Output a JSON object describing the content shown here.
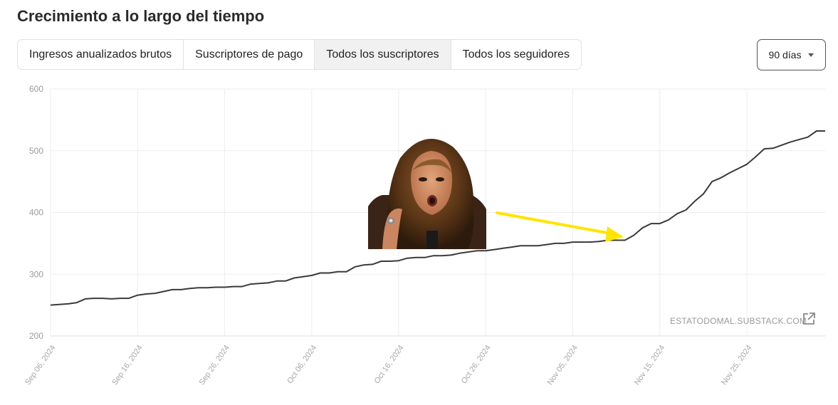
{
  "header": {
    "title": "Crecimiento a lo largo del tiempo"
  },
  "tabs": [
    {
      "label": "Ingresos anualizados brutos",
      "active": false
    },
    {
      "label": "Suscriptores de pago",
      "active": false
    },
    {
      "label": "Todos los suscriptores",
      "active": true
    },
    {
      "label": "Todos los seguidores",
      "active": false
    }
  ],
  "range_select": {
    "label": "90 días"
  },
  "watermark": "ESTATODOMAL.SUBSTACK.COM",
  "colors": {
    "line": "#3a3a3a",
    "grid": "#ededed",
    "arrow": "#ffe500",
    "active_tab": "#f1f1f1"
  },
  "icons": {
    "external_link": "external-link-icon",
    "dropdown": "chevron-down-icon"
  },
  "chart_data": {
    "type": "line",
    "title": "",
    "xlabel": "",
    "ylabel": "",
    "ylim": [
      200,
      600
    ],
    "y_ticks": [
      200,
      300,
      400,
      500,
      600
    ],
    "x_tick_labels": [
      "Sep 06, 2024",
      "Sep 16, 2024",
      "Sep 26, 2024",
      "Oct 06, 2024",
      "Oct 16, 2024",
      "Oct 26, 2024",
      "Nov 05, 2024",
      "Nov 15, 2024",
      "Nov 25, 2024"
    ],
    "grid": true,
    "series": [
      {
        "x": [
          "2024-09-06",
          "2024-09-07",
          "2024-09-08",
          "2024-09-09",
          "2024-09-10",
          "2024-09-11",
          "2024-09-12",
          "2024-09-13",
          "2024-09-14",
          "2024-09-15",
          "2024-09-16",
          "2024-09-17",
          "2024-09-18",
          "2024-09-19",
          "2024-09-20",
          "2024-09-21",
          "2024-09-22",
          "2024-09-23",
          "2024-09-24",
          "2024-09-25",
          "2024-09-26",
          "2024-09-27",
          "2024-09-28",
          "2024-09-29",
          "2024-09-30",
          "2024-10-01",
          "2024-10-02",
          "2024-10-03",
          "2024-10-04",
          "2024-10-05",
          "2024-10-06",
          "2024-10-07",
          "2024-10-08",
          "2024-10-09",
          "2024-10-10",
          "2024-10-11",
          "2024-10-12",
          "2024-10-13",
          "2024-10-14",
          "2024-10-15",
          "2024-10-16",
          "2024-10-17",
          "2024-10-18",
          "2024-10-19",
          "2024-10-20",
          "2024-10-21",
          "2024-10-22",
          "2024-10-23",
          "2024-10-24",
          "2024-10-25",
          "2024-10-26",
          "2024-10-27",
          "2024-10-28",
          "2024-10-29",
          "2024-10-30",
          "2024-10-31",
          "2024-11-01",
          "2024-11-02",
          "2024-11-03",
          "2024-11-04",
          "2024-11-05",
          "2024-11-06",
          "2024-11-07",
          "2024-11-08",
          "2024-11-09",
          "2024-11-10",
          "2024-11-11",
          "2024-11-12",
          "2024-11-13",
          "2024-11-14",
          "2024-11-15",
          "2024-11-16",
          "2024-11-17",
          "2024-11-18",
          "2024-11-19",
          "2024-11-20",
          "2024-11-21",
          "2024-11-22",
          "2024-11-23",
          "2024-11-24",
          "2024-11-25",
          "2024-11-26",
          "2024-11-27",
          "2024-11-28",
          "2024-11-29",
          "2024-11-30",
          "2024-12-01",
          "2024-12-02",
          "2024-12-03",
          "2024-12-04"
        ],
        "values": [
          250,
          251,
          252,
          254,
          260,
          261,
          261,
          260,
          261,
          261,
          266,
          268,
          269,
          272,
          275,
          275,
          277,
          278,
          278,
          279,
          279,
          280,
          280,
          284,
          285,
          286,
          289,
          289,
          294,
          296,
          298,
          302,
          302,
          304,
          304,
          312,
          315,
          316,
          321,
          321,
          322,
          326,
          327,
          327,
          330,
          330,
          331,
          334,
          336,
          338,
          338,
          340,
          342,
          344,
          346,
          346,
          346,
          348,
          350,
          350,
          352,
          352,
          352,
          353,
          355,
          355,
          355,
          363,
          375,
          382,
          382,
          388,
          398,
          404,
          418,
          430,
          450,
          456,
          464,
          471,
          478,
          490,
          503,
          504,
          509,
          514,
          518,
          522,
          532,
          532
        ]
      }
    ]
  }
}
